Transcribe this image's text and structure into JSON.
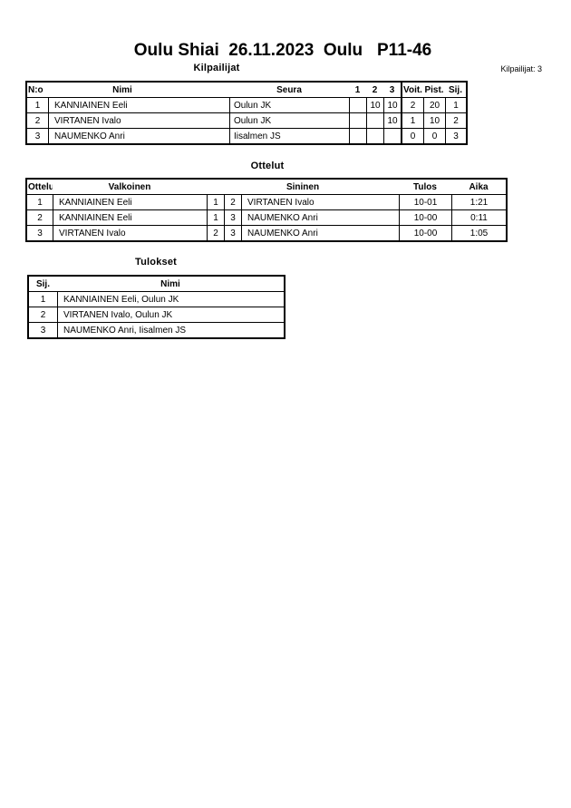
{
  "page": {
    "title": "Oulu Shiai  26.11.2023  Oulu   P11-46",
    "competitors_count": "Kilpailijat: 3"
  },
  "kilpailijat": {
    "heading": "Kilpailijat",
    "headers": {
      "no": "N:o",
      "nimi": "Nimi",
      "seura": "Seura",
      "r1": "1",
      "r2": "2",
      "r3": "3",
      "voit": "Voit.",
      "pist": "Pist.",
      "sij": "Sij."
    },
    "rows": [
      {
        "no": "1",
        "nimi": "KANNIAINEN Eeli",
        "seura": "Oulun JK",
        "r1": "",
        "r2": "10",
        "r3": "10",
        "voit": "2",
        "pist": "20",
        "sij": "1"
      },
      {
        "no": "2",
        "nimi": "VIRTANEN Ivalo",
        "seura": "Oulun JK",
        "r1": "",
        "r2": "",
        "r3": "10",
        "voit": "1",
        "pist": "10",
        "sij": "2"
      },
      {
        "no": "3",
        "nimi": "NAUMENKO Anri",
        "seura": "Iisalmen JS",
        "r1": "",
        "r2": "",
        "r3": "",
        "voit": "0",
        "pist": "0",
        "sij": "3"
      }
    ]
  },
  "ottelut": {
    "heading": "Ottelut",
    "headers": {
      "ottelu": "Ottelu",
      "valkoinen": "Valkoinen",
      "sininen": "Sininen",
      "tulos": "Tulos",
      "aika": "Aika"
    },
    "rows": [
      {
        "no": "1",
        "valkoinen": "KANNIAINEN Eeli",
        "vnum": "1",
        "snum": "2",
        "sininen": "VIRTANEN Ivalo",
        "tulos": "10-01",
        "aika": "1:21"
      },
      {
        "no": "2",
        "valkoinen": "KANNIAINEN Eeli",
        "vnum": "1",
        "snum": "3",
        "sininen": "NAUMENKO Anri",
        "tulos": "10-00",
        "aika": "0:11"
      },
      {
        "no": "3",
        "valkoinen": "VIRTANEN Ivalo",
        "vnum": "2",
        "snum": "3",
        "sininen": "NAUMENKO Anri",
        "tulos": "10-00",
        "aika": "1:05"
      }
    ]
  },
  "tulokset": {
    "heading": "Tulokset",
    "headers": {
      "sij": "Sij.",
      "nimi": "Nimi"
    },
    "rows": [
      {
        "sij": "1",
        "nimi": "KANNIAINEN Eeli, Oulun JK"
      },
      {
        "sij": "2",
        "nimi": "VIRTANEN Ivalo, Oulun JK"
      },
      {
        "sij": "3",
        "nimi": "NAUMENKO Anri, Iisalmen JS"
      }
    ]
  }
}
